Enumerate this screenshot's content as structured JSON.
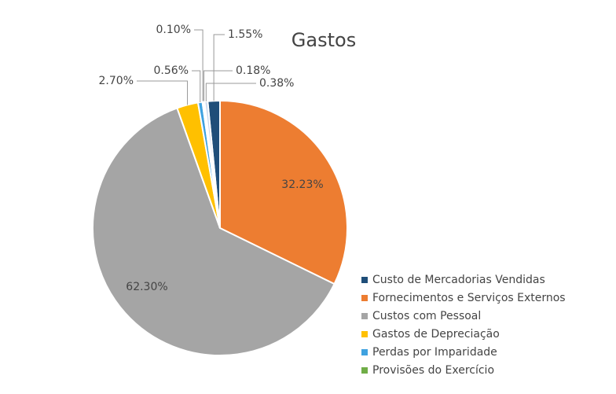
{
  "chart_data": {
    "type": "pie",
    "title": "Gastos",
    "categories": [
      "Custo de Mercadorias Vendidas",
      "Fornecimentos e Serviços Externos",
      "Custos com Pessoal",
      "Gastos de Depreciação",
      "Perdas por Imparidade",
      "Provisões do Exercício",
      null,
      null
    ],
    "values": [
      1.55,
      32.23,
      62.3,
      2.7,
      0.56,
      0.1,
      0.18,
      0.38
    ],
    "value_labels": [
      "1.55%",
      "32.23%",
      "62.30%",
      "2.70%",
      "0.56%",
      "0.10%",
      "0.18%",
      "0.38%"
    ],
    "colors": [
      "#1f4e79",
      "#ed7d31",
      "#a5a5a5",
      "#ffc000",
      "#3fa2e0",
      "#70ad47",
      "#264478",
      "#c9d8ee"
    ],
    "legend": "right"
  }
}
